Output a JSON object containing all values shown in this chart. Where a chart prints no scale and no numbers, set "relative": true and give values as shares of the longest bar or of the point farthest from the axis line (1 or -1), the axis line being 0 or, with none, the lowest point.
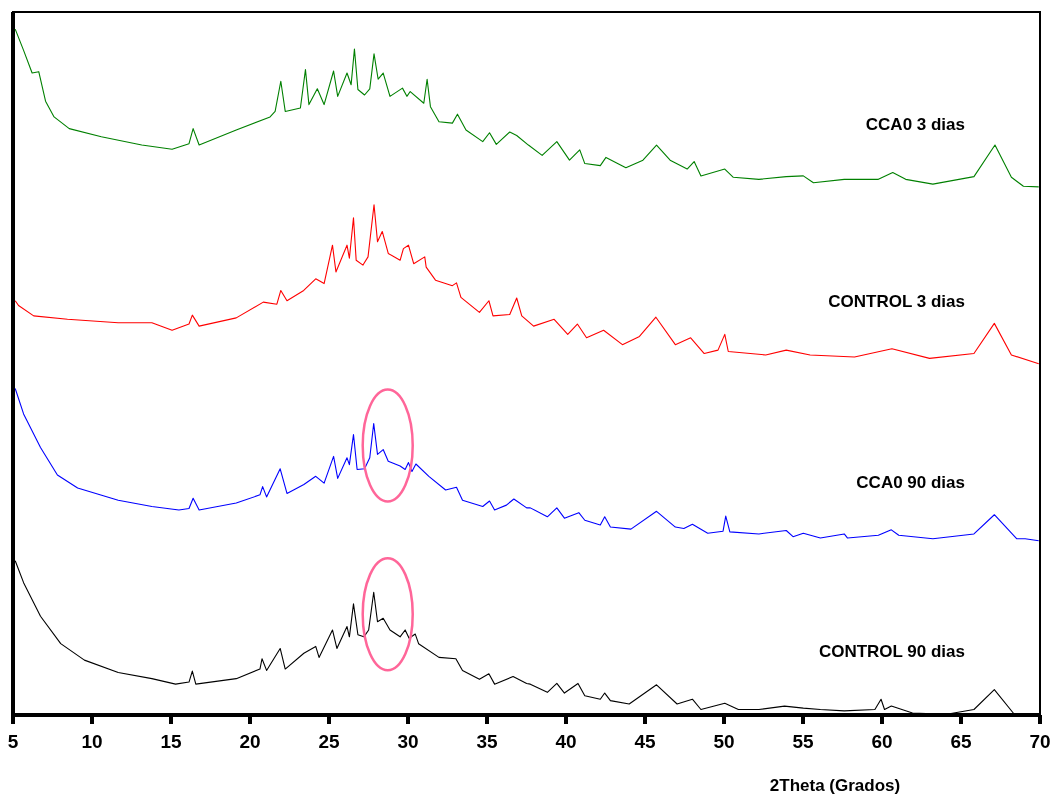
{
  "chart_data": {
    "type": "line",
    "relative": true,
    "xlabel": "2Theta (Grados)",
    "xlim": [
      5,
      70
    ],
    "xticks": [
      5,
      10,
      15,
      20,
      25,
      30,
      35,
      40,
      45,
      50,
      55,
      60,
      65,
      70
    ],
    "grid": false,
    "marker": "none",
    "line_style": "solid",
    "series": [
      {
        "name": "CCA0 3 dias",
        "color": "#008000",
        "x": [
          5.14,
          5.67,
          6.21,
          6.63,
          7.06,
          7.6,
          8.56,
          10.59,
          13.15,
          15.07,
          16.14,
          16.4,
          16.78,
          19.13,
          21.27,
          21.59,
          21.95,
          22.23,
          23.19,
          23.51,
          23.73,
          24.26,
          24.69,
          25.29,
          25.55,
          26.14,
          26.4,
          26.61,
          26.83,
          27.25,
          27.58,
          27.85,
          28.11,
          28.43,
          28.86,
          29.65,
          29.93,
          30.14,
          31.0,
          31.21,
          31.42,
          31.96,
          32.81,
          33.13,
          33.67,
          34.73,
          35.16,
          35.59,
          36.44,
          36.88,
          37.62,
          38.49,
          39.42,
          40.22,
          40.87,
          41.19,
          42.17,
          42.53,
          43.79,
          44.87,
          45.73,
          46.59,
          47.67,
          48.11,
          48.54,
          50.05,
          50.59,
          52.21,
          53.94,
          55.02,
          55.66,
          57.61,
          59.77,
          60.68,
          61.5,
          63.22,
          65.82,
          67.15,
          68.19,
          68.95,
          69.92
        ],
        "values": [
          1.0,
          0.969,
          0.936,
          0.938,
          0.895,
          0.872,
          0.855,
          0.843,
          0.831,
          0.825,
          0.833,
          0.855,
          0.831,
          0.853,
          0.872,
          0.88,
          0.924,
          0.88,
          0.885,
          0.941,
          0.89,
          0.913,
          0.89,
          0.939,
          0.902,
          0.936,
          0.919,
          0.971,
          0.912,
          0.904,
          0.913,
          0.964,
          0.927,
          0.936,
          0.902,
          0.914,
          0.902,
          0.909,
          0.892,
          0.927,
          0.887,
          0.865,
          0.863,
          0.876,
          0.853,
          0.836,
          0.849,
          0.832,
          0.85,
          0.845,
          0.831,
          0.816,
          0.836,
          0.809,
          0.824,
          0.804,
          0.801,
          0.813,
          0.798,
          0.809,
          0.831,
          0.809,
          0.796,
          0.807,
          0.786,
          0.796,
          0.784,
          0.781,
          0.785,
          0.786,
          0.776,
          0.781,
          0.781,
          0.791,
          0.781,
          0.774,
          0.785,
          0.831,
          0.784,
          0.771,
          0.77
        ]
      },
      {
        "name": "CONTROL 3 dias",
        "color": "#ff0000",
        "x": [
          5.14,
          5.35,
          6.31,
          8.45,
          11.66,
          13.79,
          15.07,
          16.14,
          16.35,
          16.78,
          19.13,
          20.84,
          21.7,
          21.95,
          22.34,
          23.4,
          24.16,
          24.69,
          25.22,
          25.44,
          26.14,
          26.29,
          26.55,
          26.72,
          27.15,
          27.47,
          27.85,
          28.07,
          28.37,
          28.75,
          29.5,
          29.71,
          30.03,
          30.36,
          31.06,
          31.15,
          31.74,
          32.81,
          33.07,
          33.35,
          34.52,
          35.12,
          35.38,
          36.44,
          36.88,
          37.2,
          37.95,
          39.25,
          40.11,
          40.72,
          41.3,
          42.38,
          43.57,
          44.65,
          45.69,
          46.92,
          47.89,
          48.75,
          49.62,
          50.05,
          50.27,
          52.64,
          53.94,
          55.45,
          58.26,
          60.63,
          63.01,
          65.82,
          67.11,
          68.19,
          69.92
        ],
        "values": [
          0.604,
          0.597,
          0.582,
          0.577,
          0.572,
          0.572,
          0.561,
          0.57,
          0.583,
          0.567,
          0.579,
          0.602,
          0.599,
          0.619,
          0.604,
          0.619,
          0.636,
          0.629,
          0.685,
          0.646,
          0.685,
          0.666,
          0.725,
          0.663,
          0.656,
          0.668,
          0.744,
          0.69,
          0.705,
          0.673,
          0.663,
          0.68,
          0.685,
          0.658,
          0.668,
          0.653,
          0.634,
          0.626,
          0.63,
          0.609,
          0.587,
          0.604,
          0.582,
          0.584,
          0.608,
          0.582,
          0.567,
          0.577,
          0.555,
          0.57,
          0.55,
          0.561,
          0.54,
          0.552,
          0.58,
          0.54,
          0.55,
          0.527,
          0.532,
          0.555,
          0.53,
          0.525,
          0.532,
          0.525,
          0.522,
          0.534,
          0.52,
          0.527,
          0.571,
          0.525,
          0.512
        ]
      },
      {
        "name": "CCA0 90 dias",
        "color": "#0000ff",
        "x": [
          5.14,
          5.67,
          6.74,
          7.81,
          9.09,
          11.66,
          13.79,
          15.5,
          16.14,
          16.4,
          16.78,
          19.13,
          20.63,
          20.8,
          21.05,
          21.91,
          22.34,
          23.41,
          24.16,
          24.69,
          25.29,
          25.55,
          26.14,
          26.29,
          26.55,
          26.78,
          27.25,
          27.58,
          27.83,
          28.07,
          28.43,
          28.75,
          29.5,
          29.82,
          30.03,
          30.25,
          30.5,
          31.32,
          32.38,
          33.07,
          33.45,
          34.73,
          35.16,
          35.48,
          36.23,
          36.7,
          37.51,
          37.74,
          38.82,
          39.42,
          39.9,
          40.81,
          41.19,
          42.17,
          42.45,
          42.81,
          44.11,
          45.73,
          46.92,
          47.46,
          48.0,
          48.97,
          49.94,
          50.11,
          50.37,
          52.21,
          53.94,
          54.37,
          55.02,
          56.1,
          57.61,
          57.82,
          59.77,
          60.59,
          61.06,
          63.22,
          65.82,
          67.11,
          68.52,
          69.06,
          69.92
        ],
        "values": [
          0.476,
          0.439,
          0.39,
          0.35,
          0.331,
          0.313,
          0.304,
          0.299,
          0.301,
          0.316,
          0.299,
          0.309,
          0.321,
          0.333,
          0.318,
          0.359,
          0.323,
          0.336,
          0.348,
          0.338,
          0.377,
          0.345,
          0.375,
          0.365,
          0.409,
          0.358,
          0.359,
          0.375,
          0.425,
          0.38,
          0.387,
          0.37,
          0.363,
          0.358,
          0.368,
          0.355,
          0.366,
          0.348,
          0.328,
          0.332,
          0.313,
          0.304,
          0.312,
          0.299,
          0.306,
          0.315,
          0.302,
          0.302,
          0.289,
          0.302,
          0.287,
          0.295,
          0.284,
          0.277,
          0.289,
          0.274,
          0.271,
          0.297,
          0.274,
          0.272,
          0.278,
          0.265,
          0.268,
          0.29,
          0.267,
          0.264,
          0.269,
          0.26,
          0.265,
          0.258,
          0.264,
          0.258,
          0.262,
          0.27,
          0.262,
          0.257,
          0.264,
          0.292,
          0.257,
          0.257,
          0.254
        ]
      },
      {
        "name": "CONTROL 90 dias",
        "color": "#000000",
        "x": [
          5.14,
          5.67,
          6.74,
          8.02,
          9.52,
          11.66,
          13.79,
          15.29,
          16.14,
          16.35,
          16.57,
          19.13,
          20.63,
          20.76,
          21.05,
          21.91,
          22.23,
          23.41,
          24.16,
          24.37,
          25.22,
          25.5,
          26.14,
          26.29,
          26.55,
          26.83,
          27.21,
          27.51,
          27.83,
          28.07,
          28.43,
          28.86,
          29.5,
          29.82,
          30.07,
          30.46,
          30.67,
          31.96,
          33.03,
          33.45,
          34.52,
          35.12,
          35.48,
          36.65,
          37.51,
          37.74,
          38.82,
          39.42,
          39.9,
          40.76,
          41.19,
          42.17,
          42.45,
          42.81,
          44.0,
          45.73,
          47.03,
          48.0,
          48.54,
          50.05,
          50.91,
          52.21,
          53.83,
          55.02,
          56.1,
          57.61,
          59.55,
          59.94,
          60.16,
          60.59,
          61.93,
          64.09,
          65.82,
          67.11,
          68.41,
          69.92
        ],
        "values": [
          0.225,
          0.193,
          0.144,
          0.104,
          0.08,
          0.062,
          0.053,
          0.045,
          0.048,
          0.064,
          0.045,
          0.053,
          0.067,
          0.082,
          0.065,
          0.097,
          0.067,
          0.09,
          0.1,
          0.084,
          0.124,
          0.097,
          0.129,
          0.114,
          0.162,
          0.117,
          0.114,
          0.124,
          0.179,
          0.136,
          0.141,
          0.124,
          0.114,
          0.124,
          0.112,
          0.118,
          0.104,
          0.084,
          0.082,
          0.065,
          0.052,
          0.06,
          0.045,
          0.056,
          0.046,
          0.045,
          0.033,
          0.046,
          0.032,
          0.046,
          0.028,
          0.023,
          0.032,
          0.021,
          0.016,
          0.044,
          0.016,
          0.023,
          0.008,
          0.017,
          0.008,
          0.008,
          0.013,
          0.01,
          0.008,
          0.006,
          0.008,
          0.023,
          0.008,
          0.013,
          0.003,
          0.001,
          0.008,
          0.037,
          0.0,
          0.0
        ]
      }
    ]
  }
}
